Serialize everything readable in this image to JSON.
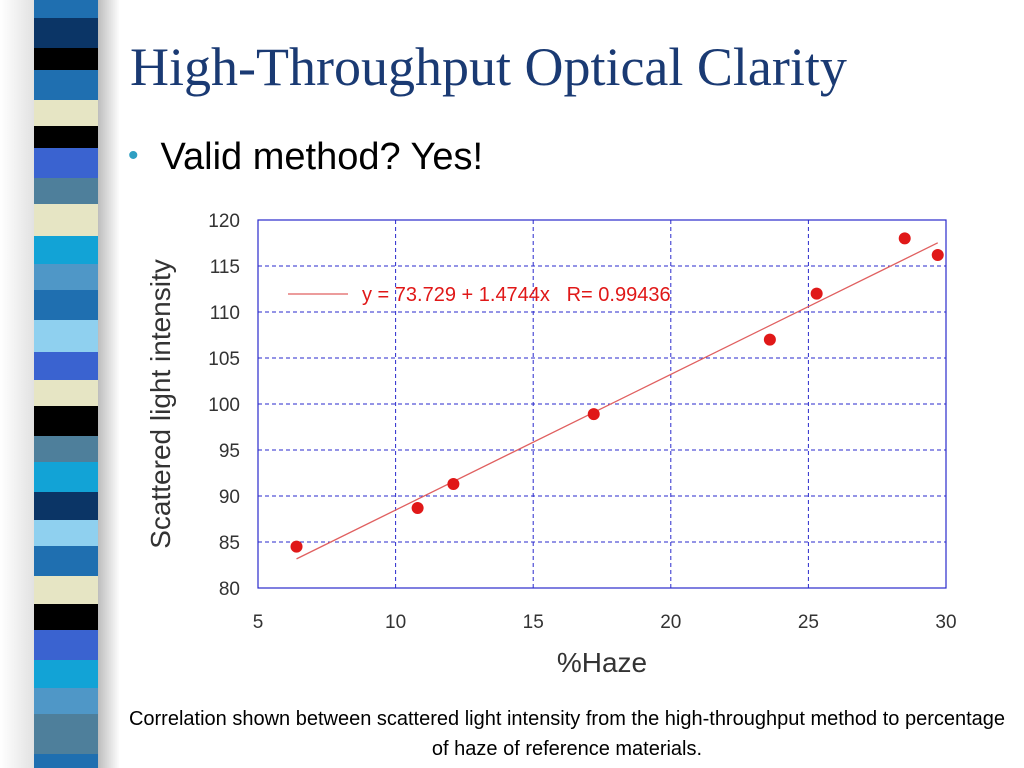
{
  "slide": {
    "title": "High-Throughput Optical Clarity",
    "bullet": "Valid method?  Yes!",
    "caption": "Correlation shown between scattered light intensity from the high-throughput method to percentage of haze of reference materials."
  },
  "colors": {
    "title": "#1a3a73",
    "bullet_dot": "#2f9fc2",
    "point": "#e01818",
    "fit_line": "#e06060",
    "grid": "#2a2acc",
    "axis_text": "#333333",
    "strip": [
      "#1f6fb0",
      "#0b3566",
      "#4f97c7",
      "#e6e5c4",
      "#000000",
      "#12a3d6",
      "#3a63d0",
      "#8fd0ef",
      "#4e7f9b"
    ]
  },
  "chart_data": {
    "type": "scatter",
    "xlabel": "%Haze",
    "ylabel": "Scattered light intensity",
    "xlim": [
      5,
      30
    ],
    "ylim": [
      80,
      120
    ],
    "xticks": [
      5,
      10,
      15,
      20,
      25,
      30
    ],
    "yticks": [
      80,
      85,
      90,
      95,
      100,
      105,
      110,
      115,
      120
    ],
    "grid": true,
    "series": [
      {
        "x": [
          6.4,
          10.8,
          12.1,
          17.2,
          23.6,
          25.3,
          28.5,
          29.7
        ],
        "y": [
          84.5,
          88.7,
          91.3,
          98.9,
          107.0,
          112.0,
          118.0,
          116.2
        ]
      }
    ],
    "fit": {
      "intercept": 73.729,
      "slope": 1.4744,
      "x_range": [
        6.4,
        29.7
      ],
      "legend": "y = 73.729 + 1.4744x   R= 0.99436"
    }
  }
}
